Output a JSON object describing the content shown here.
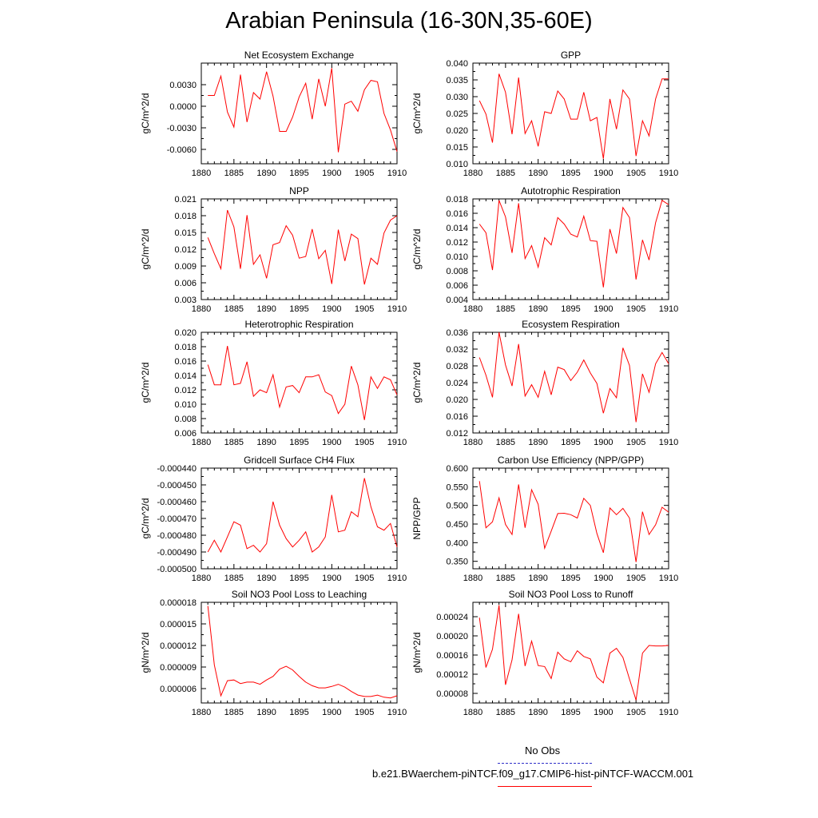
{
  "title": "Arabian Peninsula (16-30N,35-60E)",
  "legend": {
    "obs_label": "No Obs",
    "case_label": "b.e21.BWaerchem-piNTCF.f09_g17.CMIP6-hist-piNTCF-WACCM.001",
    "obs_color": "#3030c8",
    "case_color": "#ff0000"
  },
  "chart_data": [
    {
      "type": "line",
      "title": "Net Ecosystem Exchange",
      "ylabel": "gC/m^2/d",
      "x": [
        1881,
        1882,
        1883,
        1884,
        1885,
        1886,
        1887,
        1888,
        1889,
        1890,
        1891,
        1892,
        1893,
        1894,
        1895,
        1896,
        1897,
        1898,
        1899,
        1900,
        1901,
        1902,
        1903,
        1904,
        1905,
        1906,
        1907,
        1908,
        1909,
        1910
      ],
      "values": [
        0.0015,
        0.0015,
        0.0042,
        -0.0008,
        -0.0029,
        0.0044,
        -0.0022,
        0.0019,
        0.001,
        0.0048,
        0.0014,
        -0.0035,
        -0.0035,
        -0.0015,
        0.0013,
        0.0032,
        -0.0018,
        0.0038,
        0.0,
        0.0053,
        -0.0064,
        0.0003,
        0.0007,
        -0.0007,
        0.0023,
        0.0036,
        0.0034,
        -0.001,
        -0.0033,
        -0.0063
      ],
      "ylim": [
        -0.008,
        0.006
      ],
      "xlim": [
        1880,
        1910
      ],
      "yticks": [
        "0.0030",
        "0.0000",
        "-0.0030",
        "-0.0060"
      ],
      "ytick_values": [
        0.003,
        0.0,
        -0.003,
        -0.006
      ],
      "xticks": [
        "1880",
        "1885",
        "1890",
        "1895",
        "1900",
        "1905",
        "1910"
      ]
    },
    {
      "type": "line",
      "title": "GPP",
      "ylabel": "gC/m^2/d",
      "x": [
        1881,
        1882,
        1883,
        1884,
        1885,
        1886,
        1887,
        1888,
        1889,
        1890,
        1891,
        1892,
        1893,
        1894,
        1895,
        1896,
        1897,
        1898,
        1899,
        1900,
        1901,
        1902,
        1903,
        1904,
        1905,
        1906,
        1907,
        1908,
        1909,
        1910
      ],
      "values": [
        0.0288,
        0.0248,
        0.0163,
        0.0368,
        0.0313,
        0.0188,
        0.0357,
        0.019,
        0.0228,
        0.0152,
        0.0255,
        0.025,
        0.0317,
        0.0293,
        0.0233,
        0.0233,
        0.0313,
        0.0228,
        0.0238,
        0.0115,
        0.0293,
        0.0203,
        0.032,
        0.0293,
        0.0123,
        0.0228,
        0.0183,
        0.0293,
        0.0353,
        0.0353
      ],
      "ylim": [
        0.01,
        0.04
      ],
      "xlim": [
        1880,
        1910
      ],
      "yticks": [
        "0.040",
        "0.035",
        "0.030",
        "0.025",
        "0.020",
        "0.015",
        "0.010"
      ],
      "ytick_values": [
        0.04,
        0.035,
        0.03,
        0.025,
        0.02,
        0.015,
        0.01
      ],
      "xticks": [
        "1880",
        "1885",
        "1890",
        "1895",
        "1900",
        "1905",
        "1910"
      ]
    },
    {
      "type": "line",
      "title": "NPP",
      "ylabel": "gC/m^2/d",
      "x": [
        1881,
        1882,
        1883,
        1884,
        1885,
        1886,
        1887,
        1888,
        1889,
        1890,
        1891,
        1892,
        1893,
        1894,
        1895,
        1896,
        1897,
        1898,
        1899,
        1900,
        1901,
        1902,
        1903,
        1904,
        1905,
        1906,
        1907,
        1908,
        1909,
        1910
      ],
      "values": [
        0.0141,
        0.0112,
        0.0085,
        0.019,
        0.016,
        0.0085,
        0.0181,
        0.0093,
        0.011,
        0.0068,
        0.0128,
        0.0132,
        0.0162,
        0.0145,
        0.0104,
        0.0107,
        0.0156,
        0.0103,
        0.0118,
        0.0058,
        0.0155,
        0.0099,
        0.0147,
        0.0139,
        0.0057,
        0.0104,
        0.0093,
        0.0149,
        0.0172,
        0.018
      ],
      "ylim": [
        0.003,
        0.021
      ],
      "xlim": [
        1880,
        1910
      ],
      "yticks": [
        "0.021",
        "0.018",
        "0.015",
        "0.012",
        "0.009",
        "0.006",
        "0.003"
      ],
      "ytick_values": [
        0.021,
        0.018,
        0.015,
        0.012,
        0.009,
        0.006,
        0.003
      ],
      "xticks": [
        "1880",
        "1885",
        "1890",
        "1895",
        "1900",
        "1905",
        "1910"
      ]
    },
    {
      "type": "line",
      "title": "Autotrophic Respiration",
      "ylabel": "gC/m^2/d",
      "x": [
        1881,
        1882,
        1883,
        1884,
        1885,
        1886,
        1887,
        1888,
        1889,
        1890,
        1891,
        1892,
        1893,
        1894,
        1895,
        1896,
        1897,
        1898,
        1899,
        1900,
        1901,
        1902,
        1903,
        1904,
        1905,
        1906,
        1907,
        1908,
        1909,
        1910
      ],
      "values": [
        0.0145,
        0.0133,
        0.0081,
        0.0178,
        0.0155,
        0.0105,
        0.0174,
        0.0097,
        0.0115,
        0.0085,
        0.0126,
        0.0116,
        0.0154,
        0.0145,
        0.0131,
        0.0127,
        0.0156,
        0.0122,
        0.0121,
        0.0057,
        0.0138,
        0.0104,
        0.0168,
        0.0154,
        0.0068,
        0.0123,
        0.0095,
        0.0147,
        0.0178,
        0.0172
      ],
      "ylim": [
        0.004,
        0.018
      ],
      "xlim": [
        1880,
        1910
      ],
      "yticks": [
        "0.018",
        "0.016",
        "0.014",
        "0.012",
        "0.010",
        "0.008",
        "0.006",
        "0.004"
      ],
      "ytick_values": [
        0.018,
        0.016,
        0.014,
        0.012,
        0.01,
        0.008,
        0.006,
        0.004
      ],
      "xticks": [
        "1880",
        "1885",
        "1890",
        "1895",
        "1900",
        "1905",
        "1910"
      ]
    },
    {
      "type": "line",
      "title": "Heterotrophic Respiration",
      "ylabel": "gC/m^2/d",
      "x": [
        1881,
        1882,
        1883,
        1884,
        1885,
        1886,
        1887,
        1888,
        1889,
        1890,
        1891,
        1892,
        1893,
        1894,
        1895,
        1896,
        1897,
        1898,
        1899,
        1900,
        1901,
        1902,
        1903,
        1904,
        1905,
        1906,
        1907,
        1908,
        1909,
        1910
      ],
      "values": [
        0.0155,
        0.0127,
        0.0127,
        0.0181,
        0.0127,
        0.0129,
        0.0159,
        0.0111,
        0.012,
        0.0116,
        0.0141,
        0.0096,
        0.0124,
        0.0126,
        0.0116,
        0.0138,
        0.0138,
        0.0141,
        0.0117,
        0.0112,
        0.0087,
        0.01,
        0.0153,
        0.0127,
        0.0078,
        0.0138,
        0.0122,
        0.0138,
        0.0134,
        0.0113
      ],
      "ylim": [
        0.006,
        0.02
      ],
      "xlim": [
        1880,
        1910
      ],
      "yticks": [
        "0.020",
        "0.018",
        "0.016",
        "0.014",
        "0.012",
        "0.010",
        "0.008",
        "0.006"
      ],
      "ytick_values": [
        0.02,
        0.018,
        0.016,
        0.014,
        0.012,
        0.01,
        0.008,
        0.006
      ],
      "xticks": [
        "1880",
        "1885",
        "1890",
        "1895",
        "1900",
        "1905",
        "1910"
      ]
    },
    {
      "type": "line",
      "title": "Ecosystem Respiration",
      "ylabel": "gC/m^2/d",
      "x": [
        1881,
        1882,
        1883,
        1884,
        1885,
        1886,
        1887,
        1888,
        1889,
        1890,
        1891,
        1892,
        1893,
        1894,
        1895,
        1896,
        1897,
        1898,
        1899,
        1900,
        1901,
        1902,
        1903,
        1904,
        1905,
        1906,
        1907,
        1908,
        1909,
        1910
      ],
      "values": [
        0.03,
        0.0258,
        0.0205,
        0.036,
        0.0282,
        0.0232,
        0.0332,
        0.0208,
        0.0235,
        0.0205,
        0.0267,
        0.0211,
        0.0277,
        0.0271,
        0.0245,
        0.0265,
        0.0294,
        0.0263,
        0.0238,
        0.0167,
        0.0226,
        0.0204,
        0.0323,
        0.0281,
        0.0146,
        0.0261,
        0.0217,
        0.0285,
        0.0312,
        0.0285
      ],
      "ylim": [
        0.012,
        0.036
      ],
      "xlim": [
        1880,
        1910
      ],
      "yticks": [
        "0.036",
        "0.032",
        "0.028",
        "0.024",
        "0.020",
        "0.016",
        "0.012"
      ],
      "ytick_values": [
        0.036,
        0.032,
        0.028,
        0.024,
        0.02,
        0.016,
        0.012
      ],
      "xticks": [
        "1880",
        "1885",
        "1890",
        "1895",
        "1900",
        "1905",
        "1910"
      ]
    },
    {
      "type": "line",
      "title": "Gridcell Surface CH4 Flux",
      "ylabel": "gC/m^2/d",
      "x": [
        1881,
        1882,
        1883,
        1884,
        1885,
        1886,
        1887,
        1888,
        1889,
        1890,
        1891,
        1892,
        1893,
        1894,
        1895,
        1896,
        1897,
        1898,
        1899,
        1900,
        1901,
        1902,
        1903,
        1904,
        1905,
        1906,
        1907,
        1908,
        1909,
        1910
      ],
      "values": [
        -0.00049,
        -0.000483,
        -0.00049,
        -0.000481,
        -0.000472,
        -0.000474,
        -0.000488,
        -0.000486,
        -0.00049,
        -0.000485,
        -0.00046,
        -0.000474,
        -0.000482,
        -0.000487,
        -0.000483,
        -0.000478,
        -0.00049,
        -0.000487,
        -0.000481,
        -0.000456,
        -0.000478,
        -0.000477,
        -0.000466,
        -0.000469,
        -0.000446,
        -0.000463,
        -0.000475,
        -0.000477,
        -0.000473,
        -0.000487
      ],
      "ylim": [
        -0.0005,
        -0.00044
      ],
      "xlim": [
        1880,
        1910
      ],
      "yticks": [
        "-0.000440",
        "-0.000450",
        "-0.000460",
        "-0.000470",
        "-0.000480",
        "-0.000490",
        "-0.000500"
      ],
      "ytick_values": [
        -0.00044,
        -0.00045,
        -0.00046,
        -0.00047,
        -0.00048,
        -0.00049,
        -0.0005
      ],
      "xticks": [
        "1880",
        "1885",
        "1890",
        "1895",
        "1900",
        "1905",
        "1910"
      ]
    },
    {
      "type": "line",
      "title": "Carbon Use Efficiency (NPP/GPP)",
      "ylabel": "NPP/GPP",
      "x": [
        1881,
        1882,
        1883,
        1884,
        1885,
        1886,
        1887,
        1888,
        1889,
        1890,
        1891,
        1892,
        1893,
        1894,
        1895,
        1896,
        1897,
        1898,
        1899,
        1900,
        1901,
        1902,
        1903,
        1904,
        1905,
        1906,
        1907,
        1908,
        1909,
        1910
      ],
      "values": [
        0.565,
        0.44,
        0.456,
        0.52,
        0.449,
        0.422,
        0.556,
        0.44,
        0.542,
        0.503,
        0.385,
        0.431,
        0.478,
        0.479,
        0.475,
        0.466,
        0.519,
        0.5,
        0.425,
        0.373,
        0.493,
        0.475,
        0.492,
        0.466,
        0.348,
        0.483,
        0.422,
        0.448,
        0.495,
        0.482
      ],
      "ylim": [
        0.33,
        0.6
      ],
      "xlim": [
        1880,
        1910
      ],
      "yticks": [
        "0.600",
        "0.550",
        "0.500",
        "0.450",
        "0.400",
        "0.350"
      ],
      "ytick_values": [
        0.6,
        0.55,
        0.5,
        0.45,
        0.4,
        0.35
      ],
      "xticks": [
        "1880",
        "1885",
        "1890",
        "1895",
        "1900",
        "1905",
        "1910"
      ]
    },
    {
      "type": "line",
      "title": "Soil NO3 Pool Loss to Leaching",
      "ylabel": "gN/m^2/d",
      "x": [
        1881,
        1882,
        1883,
        1884,
        1885,
        1886,
        1887,
        1888,
        1889,
        1890,
        1891,
        1892,
        1893,
        1894,
        1895,
        1896,
        1897,
        1898,
        1899,
        1900,
        1901,
        1902,
        1903,
        1904,
        1905,
        1906,
        1907,
        1908,
        1909,
        1910
      ],
      "values": [
        1.75e-05,
        9.3e-06,
        5e-06,
        7.1e-06,
        7.2e-06,
        6.7e-06,
        6.9e-06,
        6.9e-06,
        6.6e-06,
        7.2e-06,
        7.7e-06,
        8.7e-06,
        9.1e-06,
        8.6e-06,
        7.7e-06,
        6.9e-06,
        6.4e-06,
        6.1e-06,
        6.1e-06,
        6.3e-06,
        6.6e-06,
        6.2e-06,
        5.6e-06,
        5.1e-06,
        4.9e-06,
        4.9e-06,
        5.1e-06,
        4.8e-06,
        4.7e-06,
        5e-06
      ],
      "ylim": [
        4e-06,
        1.8e-05
      ],
      "xlim": [
        1880,
        1910
      ],
      "yticks": [
        "0.000018",
        "0.000015",
        "0.000012",
        "0.000009",
        "0.000006"
      ],
      "ytick_values": [
        1.8e-05,
        1.5e-05,
        1.2e-05,
        9e-06,
        6e-06
      ],
      "xticks": [
        "1880",
        "1885",
        "1890",
        "1895",
        "1900",
        "1905",
        "1910"
      ]
    },
    {
      "type": "line",
      "title": "Soil NO3 Pool Loss to Runoff",
      "ylabel": "gN/m^2/d",
      "x": [
        1881,
        1882,
        1883,
        1884,
        1885,
        1886,
        1887,
        1888,
        1889,
        1890,
        1891,
        1892,
        1893,
        1894,
        1895,
        1896,
        1897,
        1898,
        1899,
        1900,
        1901,
        1902,
        1903,
        1904,
        1905,
        1906,
        1907,
        1908,
        1909,
        1910
      ],
      "values": [
        0.000238,
        0.000134,
        0.000172,
        0.000264,
        9.8e-05,
        0.00015,
        0.000246,
        0.000137,
        0.000189,
        0.000138,
        0.000136,
        0.000111,
        0.000166,
        0.000152,
        0.000146,
        0.000169,
        0.000157,
        0.000152,
        0.000114,
        0.000102,
        0.000164,
        0.000174,
        0.000155,
        0.00011,
        6.6e-05,
        0.000164,
        0.00018,
        0.000179,
        0.000179,
        0.00018
      ],
      "ylim": [
        6e-05,
        0.00027
      ],
      "xlim": [
        1880,
        1910
      ],
      "yticks": [
        "0.00024",
        "0.00020",
        "0.00016",
        "0.00012",
        "0.00008"
      ],
      "ytick_values": [
        0.00024,
        0.0002,
        0.00016,
        0.00012,
        8e-05
      ],
      "xticks": [
        "1880",
        "1885",
        "1890",
        "1895",
        "1900",
        "1905",
        "1910"
      ]
    }
  ]
}
